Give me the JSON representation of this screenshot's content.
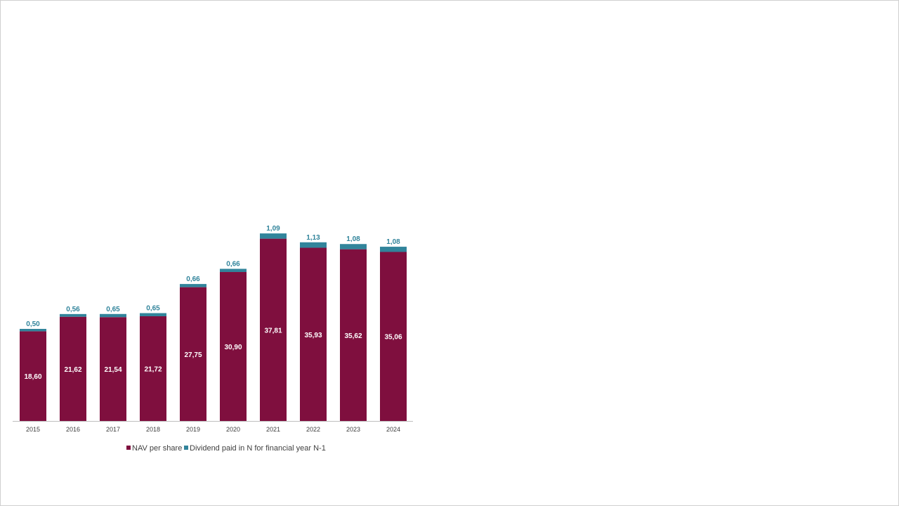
{
  "chart_data": {
    "type": "bar",
    "stacked": true,
    "categories": [
      "2015",
      "2016",
      "2017",
      "2018",
      "2019",
      "2020",
      "2021",
      "2022",
      "2023",
      "2024"
    ],
    "series": [
      {
        "name": "NAV per share",
        "color": "#7f0f3e",
        "values": [
          18.6,
          21.62,
          21.54,
          21.72,
          27.75,
          30.9,
          37.81,
          35.93,
          35.62,
          35.06
        ],
        "labels": [
          "18,60",
          "21,62",
          "21,54",
          "21,72",
          "27,75",
          "30,90",
          "37,81",
          "35,93",
          "35,62",
          "35,06"
        ]
      },
      {
        "name": "Dividend paid in N for financial year N-1",
        "color": "#31849b",
        "values": [
          0.5,
          0.56,
          0.65,
          0.65,
          0.66,
          0.66,
          1.09,
          1.13,
          1.08,
          1.08
        ],
        "labels": [
          "0,50",
          "0,56",
          "0,65",
          "0,65",
          "0,66",
          "0,66",
          "1,09",
          "1,13",
          "1,08",
          "1,08"
        ]
      }
    ],
    "legend": "bottom",
    "grid": false
  }
}
